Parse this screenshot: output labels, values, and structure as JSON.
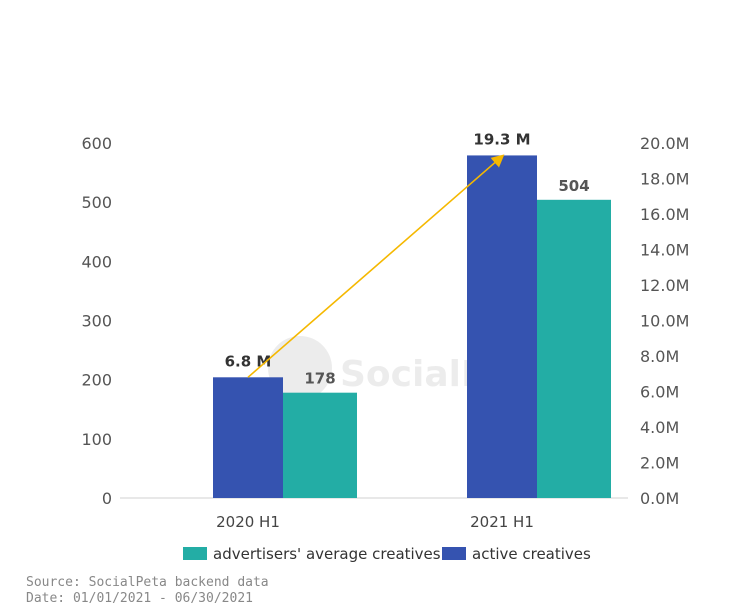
{
  "chart_data": {
    "type": "bar",
    "categories": [
      "2020 H1",
      "2021 H1"
    ],
    "series": [
      {
        "name": "active creatives",
        "axis": "right",
        "values": [
          6.8,
          19.3
        ],
        "unit": "M",
        "labels": [
          "6.8 M",
          "19.3 M"
        ],
        "color": "#3553B0"
      },
      {
        "name": "advertisers' average creatives",
        "axis": "left",
        "values": [
          178,
          504
        ],
        "labels": [
          "178",
          "504"
        ],
        "color": "#23ADA5"
      }
    ],
    "left_axis": {
      "ylim": [
        0,
        600
      ],
      "ticks": [
        "0",
        "100",
        "200",
        "300",
        "400",
        "500",
        "600"
      ]
    },
    "right_axis": {
      "ylim": [
        0,
        20
      ],
      "ticks": [
        "0.0M",
        "2.0M",
        "4.0M",
        "6.0M",
        "8.0M",
        "10.0M",
        "12.0M",
        "14.0M",
        "16.0M",
        "18.0M",
        "20.0M"
      ]
    },
    "legend": {
      "placement": "bottom",
      "order": [
        "advertisers' average creatives",
        "active creatives"
      ]
    },
    "growth_arrow": {
      "from_series": "active creatives",
      "color": "#F5B800"
    },
    "grid": false
  },
  "watermark": "SocialPeta",
  "source": {
    "line1": "Source: SocialPeta backend data",
    "line2": "Date: 01/01/2021 - 06/30/2021"
  }
}
